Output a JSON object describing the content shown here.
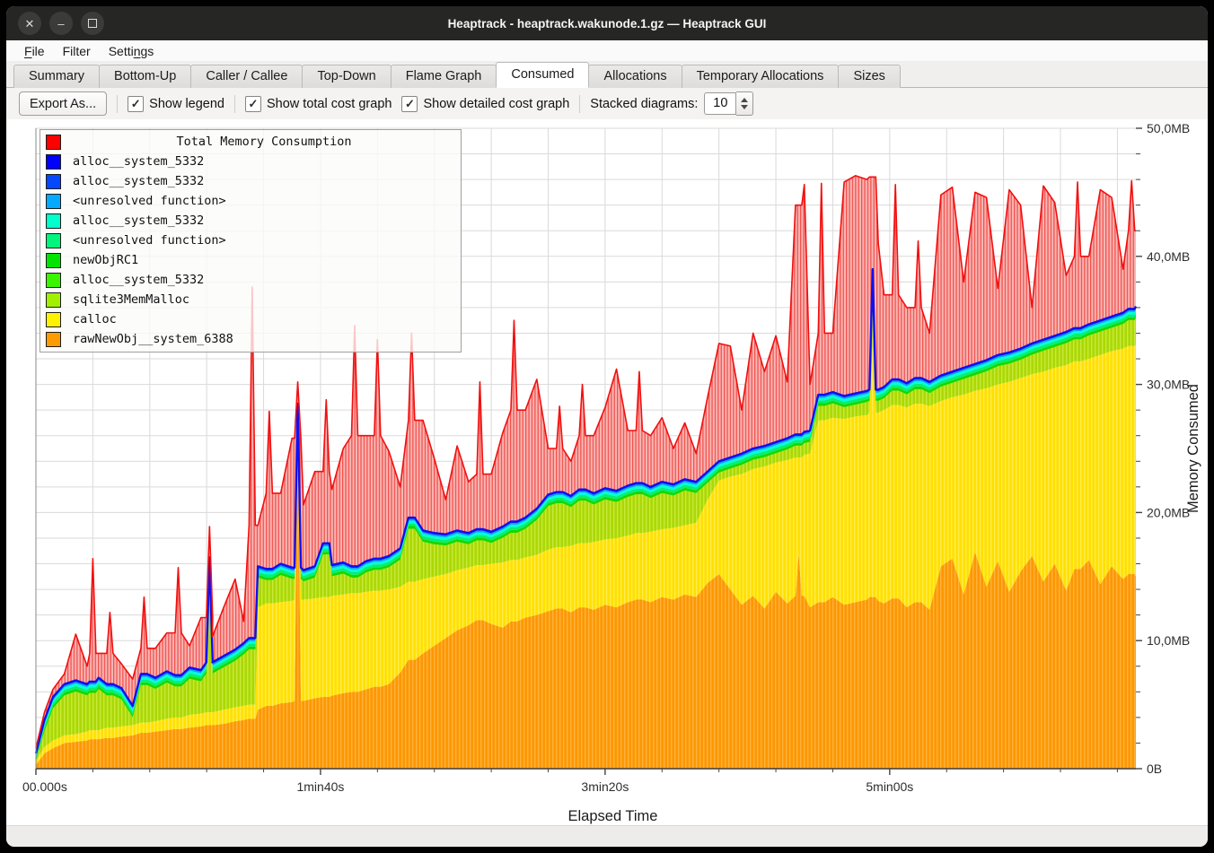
{
  "window": {
    "title": "Heaptrack - heaptrack.wakunode.1.gz — Heaptrack GUI",
    "buttons": [
      {
        "name": "close",
        "glyph": "✕"
      },
      {
        "name": "minimize",
        "glyph": "–"
      },
      {
        "name": "maximize",
        "glyph": ""
      }
    ]
  },
  "menu": {
    "items": [
      {
        "pre": "",
        "accel": "F",
        "post": "ile"
      },
      {
        "pre": "Filter",
        "accel": "",
        "post": ""
      },
      {
        "pre": "Setti",
        "accel": "n",
        "post": "gs"
      }
    ]
  },
  "tabs": {
    "active": "Consumed",
    "items": [
      "Summary",
      "Bottom-Up",
      "Caller / Callee",
      "Top-Down",
      "Flame Graph",
      "Consumed",
      "Allocations",
      "Temporary Allocations",
      "Sizes"
    ]
  },
  "toolbar": {
    "export_label": "Export As...",
    "checkboxes": [
      {
        "label": "Show legend",
        "checked": true
      },
      {
        "label": "Show total cost graph",
        "checked": true
      },
      {
        "label": "Show detailed cost graph",
        "checked": true
      }
    ],
    "stacked_label": "Stacked diagrams:",
    "stacked_value": "10",
    "check_glyph": "✓"
  },
  "chart_data": {
    "type": "area",
    "xlabel": "Elapsed Time",
    "ylabel": "Memory Consumed",
    "xlim": [
      0,
      386.5
    ],
    "ylim": [
      0,
      50
    ],
    "grid": {
      "x_step_s": 20,
      "y_step_mb": 2,
      "on": true
    },
    "x_ticks": [
      {
        "t": 0,
        "label": "00.000s"
      },
      {
        "t": 100,
        "label": "1min40s"
      },
      {
        "t": 200,
        "label": "3min20s"
      },
      {
        "t": 300,
        "label": "5min00s"
      }
    ],
    "y_ticks": [
      {
        "v": 0,
        "label": "0B"
      },
      {
        "v": 10,
        "label": "10,0MB"
      },
      {
        "v": 20,
        "label": "20,0MB"
      },
      {
        "v": 30,
        "label": "30,0MB"
      },
      {
        "v": 40,
        "label": "40,0MB"
      },
      {
        "v": 50,
        "label": "50,0MB"
      }
    ],
    "legend": [
      {
        "label": "Total Memory Consumption",
        "color": "#ff0000",
        "is_title": true
      },
      {
        "label": "alloc__system_5332",
        "color": "#0000ff"
      },
      {
        "label": "alloc__system_5332",
        "color": "#0448ff"
      },
      {
        "label": "<unresolved function>",
        "color": "#04aaff"
      },
      {
        "label": "alloc__system_5332",
        "color": "#00ffcc"
      },
      {
        "label": "<unresolved function>",
        "color": "#00f57d"
      },
      {
        "label": "newObjRC1",
        "color": "#00e400"
      },
      {
        "label": "alloc__system_5332",
        "color": "#3af500"
      },
      {
        "label": "sqlite3MemMalloc",
        "color": "#a2ef00"
      },
      {
        "label": "calloc",
        "color": "#fdf200"
      },
      {
        "label": "rawNewObj__system_6388",
        "color": "#fd9c00"
      }
    ],
    "colors": {
      "red_line": "#f20f0f",
      "blue_line": "#1010f0",
      "grid": "#dadada",
      "axis": "#3c3c3c",
      "tick": "#444444",
      "label": "#2e2e2e"
    },
    "patterns": {
      "red": {
        "bg": "#f8b6b3",
        "stripe": "#f2524e",
        "w": 3.4,
        "sw": 1.3
      },
      "orange": {
        "bg": "#fd9703",
        "stripe": "#feb23a",
        "w": 4,
        "sw": 1.4
      },
      "yellow": {
        "bg": "#ffe000",
        "stripe": "#ffec4d",
        "w": 4,
        "sw": 1.4
      },
      "chartreuse": {
        "bg": "#abd806",
        "stripe": "#c8ea39",
        "w": 4,
        "sw": 1.4
      }
    },
    "thin_bands": [
      {
        "color": "#16d800",
        "f0": 0.0,
        "f1": 0.25
      },
      {
        "color": "#00ef75",
        "f0": 0.25,
        "f1": 0.5
      },
      {
        "color": "#00ffd4",
        "f0": 0.5,
        "f1": 0.72
      },
      {
        "color": "#00a6ff",
        "f0": 0.72,
        "f1": 0.86
      },
      {
        "color": "#0437ff",
        "f0": 0.86,
        "f1": 1.0
      }
    ],
    "thin_band_total_mb": 0.88,
    "unit": "MB",
    "t": [
      0,
      3,
      6,
      10,
      14,
      18,
      20,
      22,
      26,
      30,
      34,
      38,
      42,
      46,
      50,
      54,
      58,
      61,
      62,
      66,
      70,
      73,
      76,
      78,
      82,
      86,
      90,
      92,
      94,
      98,
      102,
      104,
      108,
      112,
      116,
      120,
      124,
      128,
      132,
      136,
      140,
      144,
      148,
      152,
      156,
      160,
      164,
      168,
      172,
      176,
      180,
      184,
      188,
      192,
      196,
      200,
      204,
      208,
      212,
      216,
      220,
      224,
      228,
      232,
      236,
      240,
      244,
      248,
      252,
      256,
      260,
      264,
      268,
      270,
      272,
      276,
      280,
      284,
      288,
      292,
      294,
      296,
      298,
      302,
      306,
      310,
      314,
      318,
      322,
      326,
      330,
      334,
      338,
      342,
      346,
      350,
      354,
      358,
      362,
      366,
      370,
      374,
      378,
      382,
      385,
      386.5
    ],
    "series": {
      "orange_top": [
        0.3,
        1.2,
        1.6,
        2.0,
        2.1,
        2.2,
        2.3,
        2.3,
        2.4,
        2.5,
        2.6,
        2.8,
        2.9,
        3.0,
        3.1,
        3.2,
        3.3,
        3.4,
        3.4,
        3.5,
        3.7,
        3.8,
        3.9,
        4.6,
        4.9,
        5.1,
        5.2,
        26.0,
        5.3,
        5.5,
        5.6,
        5.7,
        5.9,
        6.0,
        6.2,
        6.4,
        6.6,
        7.5,
        8.5,
        9.0,
        9.6,
        10.2,
        10.8,
        11.2,
        11.6,
        11.3,
        11.0,
        11.5,
        11.8,
        12.0,
        12.3,
        12.5,
        12.2,
        12.6,
        12.4,
        12.8,
        12.6,
        13.0,
        13.2,
        13.0,
        13.4,
        13.2,
        13.6,
        13.4,
        14.5,
        15.2,
        14.0,
        12.8,
        13.5,
        12.5,
        13.8,
        12.9,
        16.8,
        13.5,
        12.6,
        13.0,
        13.4,
        12.8,
        13.0,
        13.2,
        13.4,
        13.1,
        12.9,
        13.3,
        12.6,
        13.0,
        12.4,
        15.8,
        16.4,
        13.6,
        16.9,
        14.2,
        16.2,
        13.8,
        15.4,
        16.6,
        14.6,
        16.0,
        13.9,
        15.6,
        16.3,
        14.4,
        15.8,
        14.8,
        15.2,
        15.0
      ],
      "yellow_top": [
        0.6,
        1.7,
        2.2,
        2.6,
        2.7,
        2.9,
        3.0,
        3.0,
        3.2,
        3.3,
        3.4,
        3.6,
        3.7,
        3.9,
        4.0,
        4.2,
        4.3,
        4.4,
        4.4,
        4.6,
        4.8,
        4.9,
        5.0,
        12.6,
        12.9,
        13.0,
        13.1,
        26.8,
        13.2,
        13.3,
        13.4,
        13.5,
        13.6,
        13.7,
        13.8,
        13.9,
        14.0,
        14.2,
        14.6,
        14.8,
        15.0,
        15.2,
        15.5,
        15.7,
        15.9,
        16.0,
        16.1,
        16.3,
        16.5,
        16.7,
        17.1,
        17.3,
        17.4,
        17.6,
        17.7,
        17.9,
        18.0,
        18.2,
        18.4,
        18.5,
        18.7,
        18.8,
        19.0,
        19.2,
        21.0,
        22.5,
        22.8,
        23.0,
        23.4,
        23.6,
        23.9,
        24.1,
        24.3,
        24.5,
        24.6,
        27.2,
        27.4,
        27.3,
        27.5,
        27.6,
        33.0,
        27.8,
        28.0,
        28.4,
        28.2,
        28.5,
        28.3,
        28.7,
        29.0,
        29.2,
        29.5,
        29.7,
        30.0,
        30.2,
        30.5,
        30.8,
        31.0,
        31.3,
        31.5,
        31.8,
        32.0,
        32.3,
        32.6,
        32.8,
        33.0,
        33.1
      ],
      "stack_top": [
        1.2,
        3.8,
        5.6,
        6.6,
        6.9,
        6.6,
        6.8,
        7.1,
        6.6,
        6.3,
        4.9,
        7.4,
        7.1,
        7.6,
        7.3,
        7.9,
        7.7,
        16.5,
        8.3,
        8.8,
        9.3,
        9.8,
        10.2,
        15.8,
        15.6,
        16.0,
        15.7,
        28.5,
        15.5,
        15.8,
        17.6,
        15.9,
        16.1,
        15.8,
        16.2,
        16.4,
        16.6,
        17.2,
        19.6,
        18.6,
        18.4,
        18.3,
        18.6,
        18.4,
        18.7,
        18.5,
        18.9,
        19.3,
        19.6,
        20.3,
        21.4,
        21.6,
        21.3,
        21.8,
        21.5,
        21.9,
        21.7,
        22.1,
        22.3,
        22.0,
        22.4,
        22.2,
        22.6,
        22.4,
        23.2,
        24.0,
        24.3,
        24.6,
        25.0,
        25.2,
        25.5,
        25.8,
        26.1,
        26.3,
        26.4,
        29.2,
        29.4,
        29.1,
        29.3,
        29.5,
        39.0,
        29.6,
        29.8,
        30.4,
        30.1,
        30.5,
        30.2,
        30.7,
        31.0,
        31.3,
        31.6,
        31.9,
        32.3,
        32.5,
        32.8,
        33.2,
        33.5,
        33.8,
        34.1,
        34.4,
        34.7,
        35.0,
        35.3,
        35.6,
        35.9,
        36.1
      ],
      "total": [
        1.6,
        4.4,
        6.2,
        7.4,
        10.5,
        8.0,
        16.4,
        9.0,
        12.2,
        8.2,
        7.0,
        13.4,
        9.4,
        10.6,
        15.7,
        9.6,
        11.8,
        18.9,
        10.3,
        12.6,
        14.8,
        11.5,
        37.6,
        19.0,
        27.9,
        21.5,
        25.8,
        30.2,
        20.6,
        23.2,
        28.8,
        21.8,
        25.0,
        34.6,
        26.0,
        33.5,
        24.8,
        22.0,
        34.0,
        27.2,
        24.2,
        21.0,
        25.2,
        22.4,
        30.2,
        23.0,
        26.2,
        35.0,
        28.0,
        30.4,
        25.0,
        28.3,
        24.0,
        30.0,
        26.0,
        28.2,
        31.2,
        26.4,
        31.0,
        26.0,
        27.4,
        25.0,
        27.0,
        24.6,
        29.0,
        33.2,
        33.0,
        28.0,
        34.0,
        31.0,
        33.8,
        30.2,
        44.0,
        45.6,
        30.0,
        45.7,
        34.0,
        45.8,
        46.3,
        46.0,
        46.2,
        41.0,
        37.0,
        45.6,
        36.0,
        41.2,
        34.0,
        44.8,
        45.4,
        38.0,
        45.0,
        44.6,
        37.5,
        45.2,
        44.0,
        36.0,
        45.5,
        44.2,
        38.5,
        45.8,
        40.0,
        45.2,
        44.6,
        39.0,
        45.9,
        42.0
      ]
    }
  }
}
